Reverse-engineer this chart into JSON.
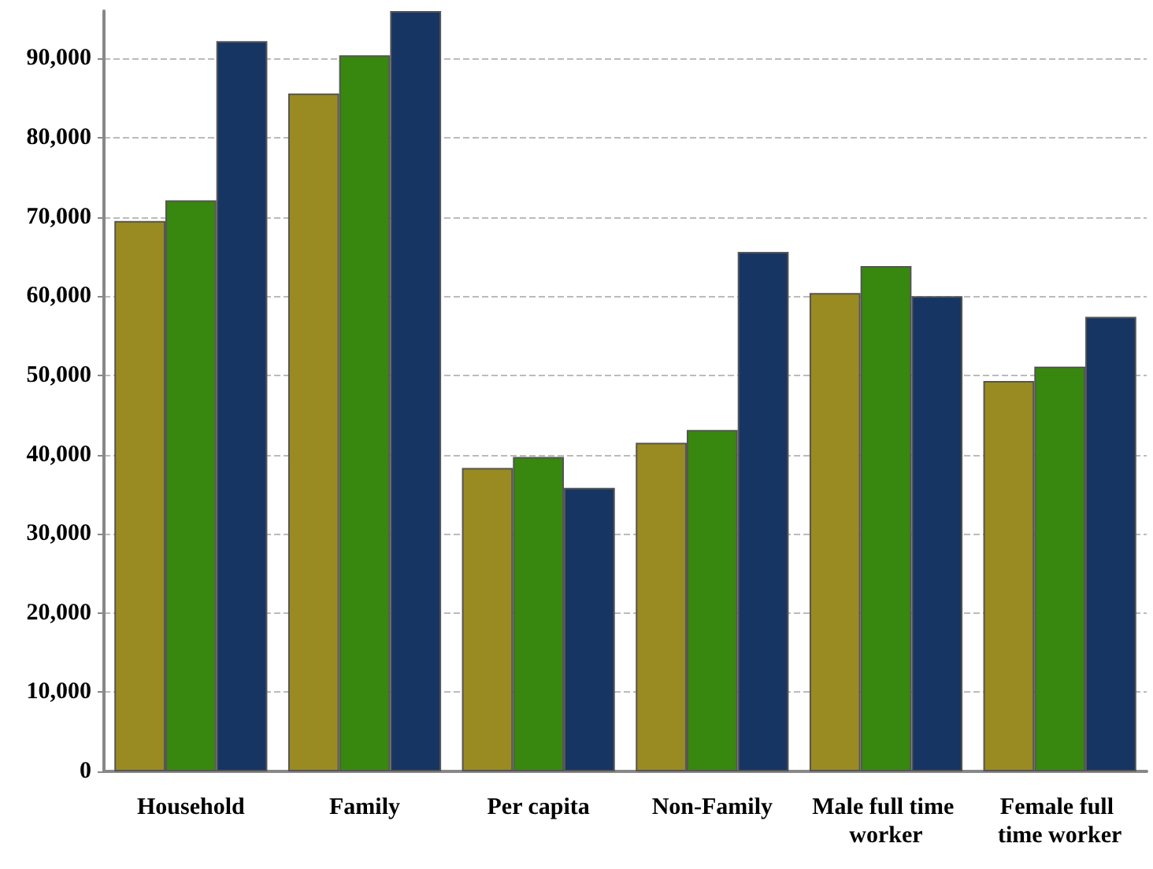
{
  "chart_data": {
    "type": "bar",
    "categories": [
      "Household",
      "Family",
      "Per capita",
      "Non-Family",
      "Male full time worker",
      "Female full time worker"
    ],
    "series": [
      {
        "color": "#9a8a22",
        "values": [
          69500,
          85600,
          38300,
          41500,
          60400,
          49300
        ]
      },
      {
        "color": "#38870f",
        "values": [
          72100,
          90400,
          39700,
          43100,
          63800,
          51100
        ]
      },
      {
        "color": "#173563",
        "values": [
          92200,
          96000,
          35800,
          65600,
          60000,
          57400
        ]
      }
    ],
    "ylim": [
      0,
      96000
    ],
    "yticks": [
      {
        "value": 0,
        "label": "0"
      },
      {
        "value": 10000,
        "label": "10,000"
      },
      {
        "value": 20000,
        "label": "20,000"
      },
      {
        "value": 30000,
        "label": "30,000"
      },
      {
        "value": 40000,
        "label": "40,000"
      },
      {
        "value": 50000,
        "label": "50,000"
      },
      {
        "value": 60000,
        "label": "60,000"
      },
      {
        "value": 70000,
        "label": "70,000"
      },
      {
        "value": 80000,
        "label": "80,000"
      },
      {
        "value": 90000,
        "label": "90,000"
      }
    ],
    "grid": "y"
  }
}
